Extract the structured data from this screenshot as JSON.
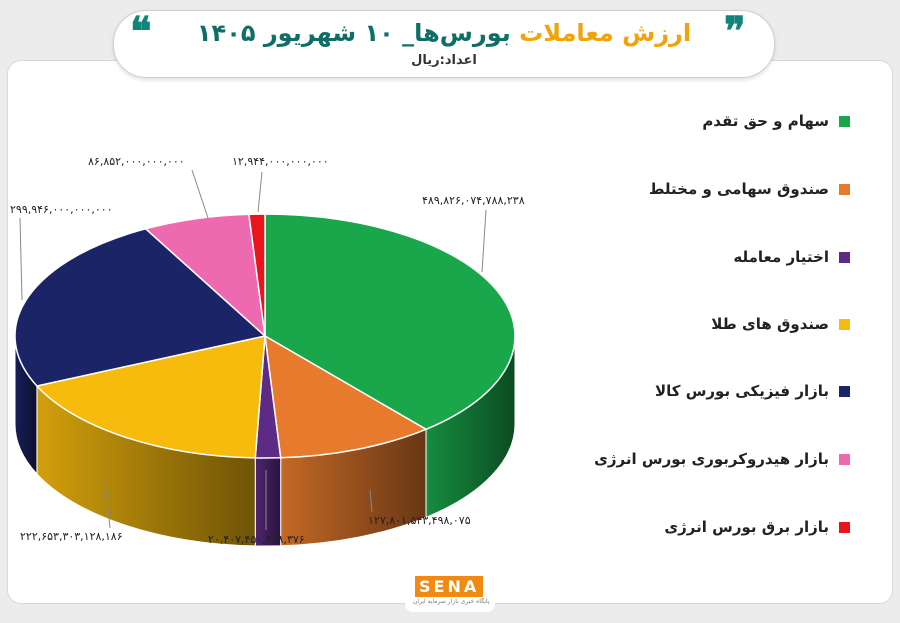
{
  "header": {
    "title_part1": "ارزش معاملات",
    "title_part2": "بورس‌ها_ ۱۰ شهریور ۱۴۰۵",
    "subtitle": "اعداد:ریال",
    "quote_left": "❝",
    "quote_right": "❞"
  },
  "logo": {
    "text": "SENA",
    "subtitle": "پایگاه خبری بازار سرمایه ایران"
  },
  "colors": {
    "green": "#1aa64a",
    "orange": "#e77a2c",
    "purple": "#5d2a86",
    "yellow": "#f7bb0e",
    "navy": "#1b2467",
    "pink": "#ee6ab0",
    "red": "#e8161b"
  },
  "chart_data": {
    "type": "pie",
    "title": "ارزش معاملات بورس‌ها_ ۱۰ شهریور ۱۴۰۵",
    "unit": "اعداد:ریال",
    "legend_position": "right",
    "slices": [
      {
        "name": "سهام و حق تقدم",
        "value": 489826074788238,
        "label": "۴۸۹,۸۲۶,۰۷۴,۷۸۸,۲۳۸",
        "color": "#1aa64a"
      },
      {
        "name": "صندوق سهامی و مختلط",
        "value": 127801543498075,
        "label": "۱۲۷,۸۰۱,۵۴۳,۴۹۸,۰۷۵",
        "color": "#e77a2c"
      },
      {
        "name": "اختیار معامله",
        "value": 20407450498376,
        "label": "۲۰,۴۰۷,۴۵۰,۴۹۸,۳۷۶",
        "color": "#5d2a86"
      },
      {
        "name": "صندوق های طلا",
        "value": 222653303128186,
        "label": "۲۲۲,۶۵۳,۳۰۳,۱۲۸,۱۸۶",
        "color": "#f7bb0e"
      },
      {
        "name": "بازار فیزیکی بورس کالا",
        "value": 299946000000000,
        "label": "۲۹۹,۹۴۶,۰۰۰,۰۰۰,۰۰۰",
        "color": "#1b2467"
      },
      {
        "name": "بازار هیدروکربوری بورس انرژی",
        "value": 86852000000000,
        "label": "۸۶,۸۵۲,۰۰۰,۰۰۰,۰۰۰",
        "color": "#ee6ab0"
      },
      {
        "name": "بازار برق بورس انرژی",
        "value": 12944000000000,
        "label": "۱۲,۹۴۴,۰۰۰,۰۰۰,۰۰۰",
        "color": "#e8161b"
      }
    ]
  }
}
